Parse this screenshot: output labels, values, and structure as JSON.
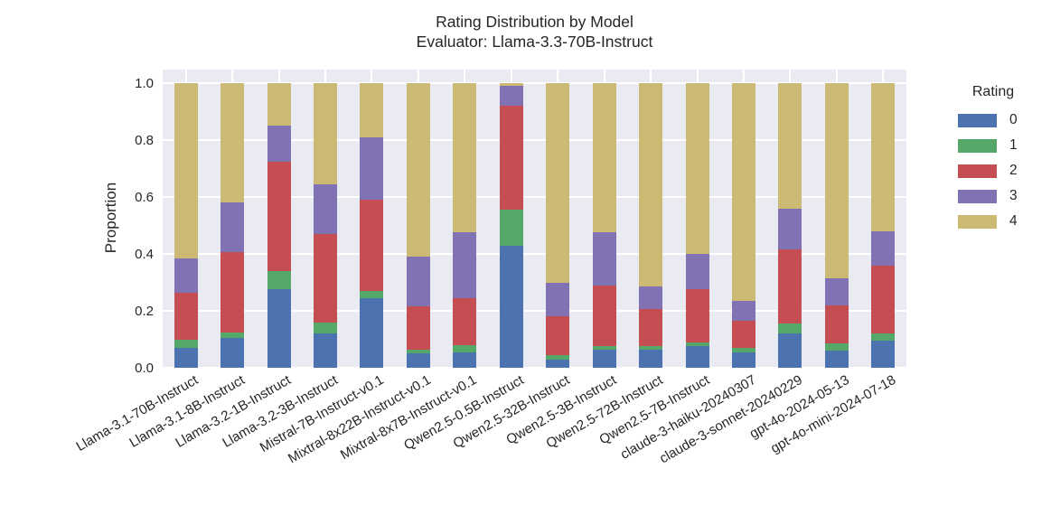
{
  "chart_data": {
    "type": "bar",
    "stacked": true,
    "title": "Rating Distribution by Model",
    "subtitle": "Evaluator: Llama-3.3-70B-Instruct",
    "ylabel": "Proportion",
    "xlabel": "",
    "ylim": [
      0.0,
      1.0
    ],
    "yticks": [
      0.0,
      0.2,
      0.4,
      0.6,
      0.8,
      1.0
    ],
    "ytick_labels": [
      "0.0",
      "0.2",
      "0.4",
      "0.6",
      "0.8",
      "1.0"
    ],
    "grid": true,
    "plot_background": "#eaeaf2",
    "gridline_color": "#ffffff",
    "legend_title": "Rating",
    "legend_position": "right",
    "categories": [
      "Llama-3.1-70B-Instruct",
      "Llama-3.1-8B-Instruct",
      "Llama-3.2-1B-Instruct",
      "Llama-3.2-3B-Instruct",
      "Mistral-7B-Instruct-v0.1",
      "Mixtral-8x22B-Instruct-v0.1",
      "Mixtral-8x7B-Instruct-v0.1",
      "Qwen2.5-0.5B-Instruct",
      "Qwen2.5-32B-Instruct",
      "Qwen2.5-3B-Instruct",
      "Qwen2.5-72B-Instruct",
      "Qwen2.5-7B-Instruct",
      "claude-3-haiku-20240307",
      "claude-3-sonnet-20240229",
      "gpt-4o-2024-05-13",
      "gpt-4o-mini-2024-07-18"
    ],
    "series": [
      {
        "name": "0",
        "color": "#4c72b0",
        "values": [
          0.07,
          0.105,
          0.275,
          0.12,
          0.245,
          0.05,
          0.055,
          0.43,
          0.03,
          0.065,
          0.065,
          0.075,
          0.055,
          0.12,
          0.06,
          0.095
        ]
      },
      {
        "name": "1",
        "color": "#55a868",
        "values": [
          0.03,
          0.02,
          0.065,
          0.04,
          0.025,
          0.015,
          0.025,
          0.125,
          0.015,
          0.01,
          0.01,
          0.015,
          0.015,
          0.035,
          0.025,
          0.025
        ]
      },
      {
        "name": "2",
        "color": "#c44e52",
        "values": [
          0.165,
          0.28,
          0.385,
          0.31,
          0.32,
          0.15,
          0.165,
          0.365,
          0.135,
          0.215,
          0.13,
          0.185,
          0.095,
          0.26,
          0.135,
          0.24
        ]
      },
      {
        "name": "3",
        "color": "#8172b3",
        "values": [
          0.12,
          0.175,
          0.125,
          0.175,
          0.22,
          0.175,
          0.23,
          0.07,
          0.12,
          0.185,
          0.08,
          0.125,
          0.07,
          0.145,
          0.095,
          0.12
        ]
      },
      {
        "name": "4",
        "color": "#ccb974",
        "values": [
          0.615,
          0.42,
          0.15,
          0.355,
          0.19,
          0.61,
          0.525,
          0.01,
          0.7,
          0.525,
          0.715,
          0.6,
          0.765,
          0.44,
          0.685,
          0.52
        ]
      }
    ]
  }
}
